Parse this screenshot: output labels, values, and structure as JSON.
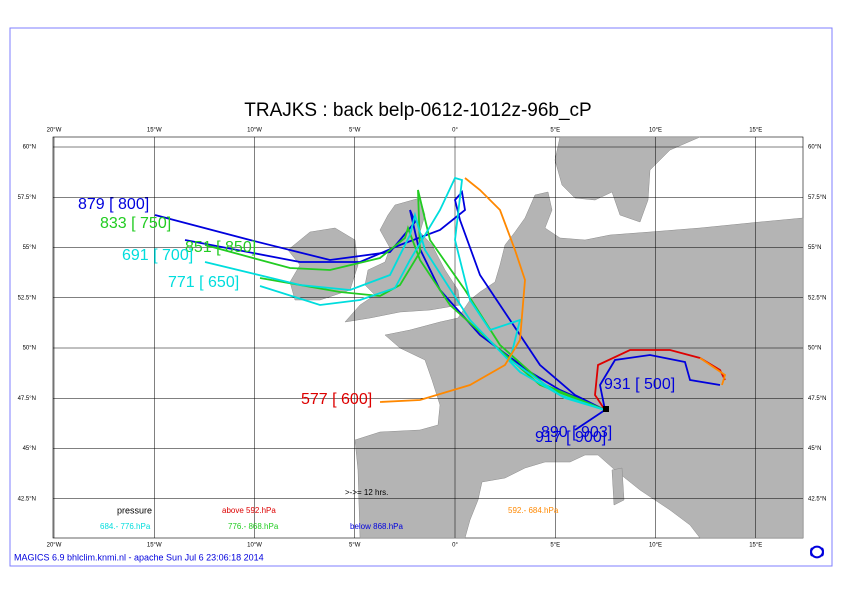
{
  "title": "TRAJKS : back belp-0612-1012z-96b_cP",
  "lon_ticks": [
    {
      "value": -20,
      "label": "20°W"
    },
    {
      "value": -15,
      "label": "15°W"
    },
    {
      "value": -10,
      "label": "10°W"
    },
    {
      "value": -5,
      "label": "5°W"
    },
    {
      "value": 0,
      "label": "0°"
    },
    {
      "value": 5,
      "label": "5°E"
    },
    {
      "value": 10,
      "label": "10°E"
    },
    {
      "value": 15,
      "label": "15°E"
    }
  ],
  "lat_ticks": [
    {
      "value": 60,
      "label": "60°N"
    },
    {
      "value": 57.5,
      "label": "57.5°N"
    },
    {
      "value": 55,
      "label": "55°N"
    },
    {
      "value": 52.5,
      "label": "52.5°N"
    },
    {
      "value": 50,
      "label": "50°N"
    },
    {
      "value": 47.5,
      "label": "47.5°N"
    },
    {
      "value": 45,
      "label": "45°N"
    },
    {
      "value": 42.5,
      "label": "42.5°N"
    }
  ],
  "trajectory_labels": [
    {
      "text": "879 [ 800]",
      "color": "#0000dd"
    },
    {
      "text": "833 [ 750]",
      "color": "#22cc22"
    },
    {
      "text": "851 [ 850]",
      "color": "#22cc22"
    },
    {
      "text": "691 [ 700]",
      "color": "#00dddd"
    },
    {
      "text": "771 [ 650]",
      "color": "#00dddd"
    },
    {
      "text": "577 [ 600]",
      "color": "#dd0000"
    },
    {
      "text": "931 [ 500]",
      "color": "#0000dd"
    },
    {
      "text": "890 [ 903]",
      "color": "#0000dd"
    },
    {
      "text": "917 [ 900]",
      "color": "#0000dd"
    }
  ],
  "legend": {
    "heading": "pressure",
    "arrow_note": ">->= 12 hrs.",
    "items": [
      {
        "label": "above  592.hPa",
        "color": "#dd0000"
      },
      {
        "label": "592.-   684.hPa",
        "color": "#ff8800"
      },
      {
        "label": "684.-   776.hPa",
        "color": "#00dddd"
      },
      {
        "label": "776.-   868.hPa",
        "color": "#22cc22"
      },
      {
        "label": "below   868.hPa",
        "color": "#0000dd"
      }
    ]
  },
  "footer": "MAGICS 6.9 bhlclim.knmi.nl - apache Sun Jul  6 23:06:18 2014"
}
